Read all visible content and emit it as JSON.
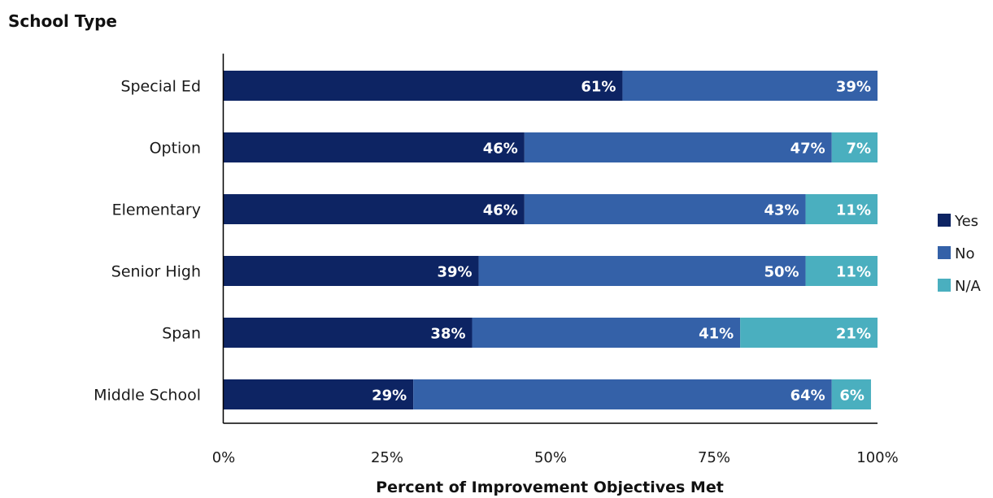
{
  "chart_data": {
    "type": "bar",
    "orientation": "horizontal",
    "stacked": true,
    "title": "School Type",
    "xlabel": "Percent of Improvement Objectives Met",
    "ylabel": "",
    "xlim": [
      0,
      100
    ],
    "x_ticks": [
      "0%",
      "25%",
      "50%",
      "75%",
      "100%"
    ],
    "categories": [
      "Special Ed",
      "Option",
      "Elementary",
      "Senior High",
      "Span",
      "Middle School"
    ],
    "series": [
      {
        "name": "Yes",
        "color": "#0d2463",
        "values": [
          61,
          46,
          46,
          39,
          38,
          29
        ],
        "labels": [
          "61%",
          "46%",
          "46%",
          "39%",
          "38%",
          "29%"
        ]
      },
      {
        "name": "No",
        "color": "#3461a8",
        "values": [
          39,
          47,
          43,
          50,
          41,
          64
        ],
        "labels": [
          "39%",
          "47%",
          "43%",
          "50%",
          "41%",
          "64%"
        ]
      },
      {
        "name": "N/A",
        "color": "#4aafbf",
        "values": [
          0,
          7,
          11,
          11,
          21,
          6
        ],
        "labels": [
          "",
          "7%",
          "11%",
          "11%",
          "21%",
          "6%"
        ]
      }
    ],
    "grid": false,
    "legend_position": "right"
  }
}
